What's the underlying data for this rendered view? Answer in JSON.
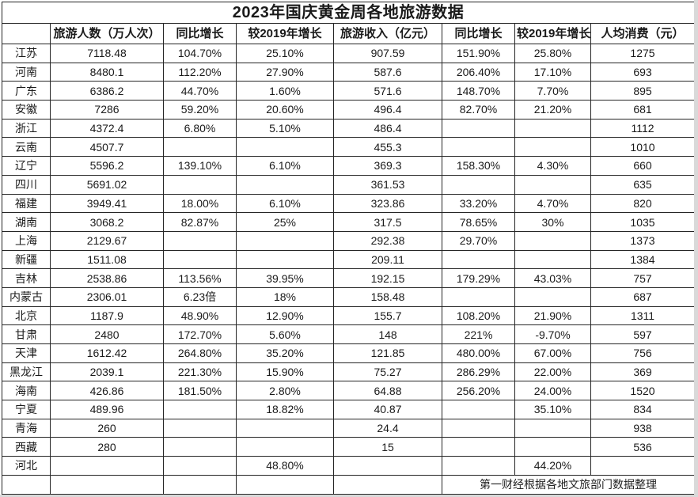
{
  "title": "2023年国庆黄金周各地旅游数据",
  "table": {
    "columns": [
      "",
      "旅游人数（万人次）",
      "同比增长",
      "较2019年增长",
      "旅游收入（亿元）",
      "同比增长",
      "较2019年增长",
      "人均消费（元）"
    ],
    "rows": [
      {
        "region": "江苏",
        "cells": [
          "7118.48",
          "104.70%",
          "25.10%",
          "907.59",
          "151.90%",
          "25.80%",
          "1275"
        ]
      },
      {
        "region": "河南",
        "cells": [
          "8480.1",
          "112.20%",
          "27.90%",
          "587.6",
          "206.40%",
          "17.10%",
          "693"
        ]
      },
      {
        "region": "广东",
        "cells": [
          "6386.2",
          "44.70%",
          "1.60%",
          "571.6",
          "148.70%",
          "7.70%",
          "895"
        ]
      },
      {
        "region": "安徽",
        "cells": [
          "7286",
          "59.20%",
          "20.60%",
          "496.4",
          "82.70%",
          "21.20%",
          "681"
        ]
      },
      {
        "region": "浙江",
        "cells": [
          "4372.4",
          "6.80%",
          "5.10%",
          "486.4",
          "",
          "",
          "1112"
        ]
      },
      {
        "region": "云南",
        "cells": [
          "4507.7",
          "",
          "",
          "455.3",
          "",
          "",
          "1010"
        ]
      },
      {
        "region": "辽宁",
        "cells": [
          "5596.2",
          "139.10%",
          "6.10%",
          "369.3",
          "158.30%",
          "4.30%",
          "660"
        ]
      },
      {
        "region": "四川",
        "cells": [
          "5691.02",
          "",
          "",
          "361.53",
          "",
          "",
          "635"
        ]
      },
      {
        "region": "福建",
        "cells": [
          "3949.41",
          "18.00%",
          "6.10%",
          "323.86",
          "33.20%",
          "4.70%",
          "820"
        ]
      },
      {
        "region": "湖南",
        "cells": [
          "3068.2",
          "82.87%",
          "25%",
          "317.5",
          "78.65%",
          "30%",
          "1035"
        ]
      },
      {
        "region": "上海",
        "cells": [
          "2129.67",
          "",
          "",
          "292.38",
          "29.70%",
          "",
          "1373"
        ]
      },
      {
        "region": "新疆",
        "cells": [
          "1511.08",
          "",
          "",
          "209.11",
          "",
          "",
          "1384"
        ]
      },
      {
        "region": "吉林",
        "cells": [
          "2538.86",
          "113.56%",
          "39.95%",
          "192.15",
          "179.29%",
          "43.03%",
          "757"
        ]
      },
      {
        "region": "内蒙古",
        "cells": [
          "2306.01",
          "6.23倍",
          "18%",
          "158.48",
          "",
          "",
          "687"
        ]
      },
      {
        "region": "北京",
        "cells": [
          "1187.9",
          "48.90%",
          "12.90%",
          "155.7",
          "108.20%",
          "21.90%",
          "1311"
        ]
      },
      {
        "region": "甘肃",
        "cells": [
          "2480",
          "172.70%",
          "5.60%",
          "148",
          "221%",
          "-9.70%",
          "597"
        ]
      },
      {
        "region": "天津",
        "cells": [
          "1612.42",
          "264.80%",
          "35.20%",
          "121.85",
          "480.00%",
          "67.00%",
          "756"
        ]
      },
      {
        "region": "黑龙江",
        "cells": [
          "2039.1",
          "221.30%",
          "15.90%",
          "75.27",
          "286.29%",
          "22.00%",
          "369"
        ]
      },
      {
        "region": "海南",
        "cells": [
          "426.86",
          "181.50%",
          "2.80%",
          "64.88",
          "256.20%",
          "24.00%",
          "1520"
        ]
      },
      {
        "region": "宁夏",
        "cells": [
          "489.96",
          "",
          "18.82%",
          "40.87",
          "",
          "35.10%",
          "834"
        ]
      },
      {
        "region": "青海",
        "cells": [
          "260",
          "",
          "",
          "24.4",
          "",
          "",
          "938"
        ]
      },
      {
        "region": "西藏",
        "cells": [
          "280",
          "",
          "",
          "15",
          "",
          "",
          "536"
        ]
      },
      {
        "region": "河北",
        "cells": [
          "",
          "",
          "48.80%",
          "",
          "",
          "44.20%",
          ""
        ]
      }
    ],
    "footer_note": "第一财经根据各地文旅部门数据整理"
  },
  "colors": {
    "selection_green": "#217346",
    "grid_border": "#262626",
    "canvas_edge": "#d9d9d9"
  }
}
